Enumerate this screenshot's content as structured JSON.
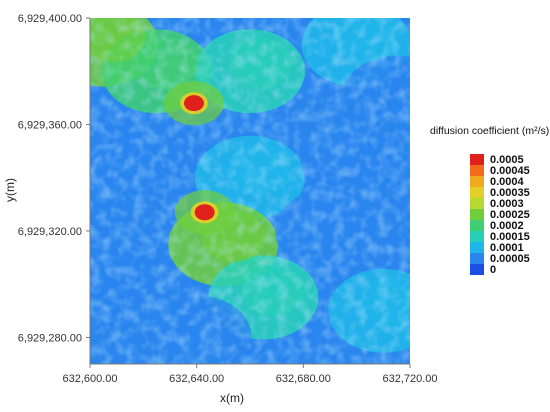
{
  "chart_data": {
    "type": "heatmap",
    "title": "",
    "xlabel": "x(m)",
    "ylabel": "y(m)",
    "xlim": [
      632600,
      632720
    ],
    "ylim": [
      6929270,
      6929400
    ],
    "x_ticks": [
      632600,
      632640,
      632680,
      632720
    ],
    "y_ticks": [
      6929280,
      6929320,
      6929360,
      6929400
    ],
    "x_tick_labels": [
      "632,600.00",
      "632,640.00",
      "632,680.00",
      "632,720.00"
    ],
    "y_tick_labels": [
      "6,929,280.00",
      "6,929,320.00",
      "6,929,360.00",
      "6,929,400.00"
    ],
    "colorbar": {
      "title": "diffusion coefficient (m²/s)",
      "levels": [
        "0.0005",
        "0.00045",
        "0.0004",
        "0.00035",
        "0.0003",
        "0.00025",
        "0.0002",
        "0.00015",
        "0.0001",
        "0.00005",
        "0"
      ],
      "colors": [
        "#e0201b",
        "#f26b1c",
        "#f2a922",
        "#e2cf28",
        "#b5d930",
        "#6fce3a",
        "#3fcf72",
        "#28d0b8",
        "#1fb7e9",
        "#2a86ee",
        "#1b4fe3"
      ]
    },
    "hotspots": [
      {
        "x": 632639,
        "y": 6929368,
        "value": 0.0005
      },
      {
        "x": 632643,
        "y": 6929327,
        "value": 0.0005
      }
    ],
    "field_description_points": [
      {
        "x": 632605,
        "y": 6929390,
        "value": 0.00025
      },
      {
        "x": 632625,
        "y": 6929380,
        "value": 0.0002
      },
      {
        "x": 632660,
        "y": 6929380,
        "value": 0.00015
      },
      {
        "x": 632700,
        "y": 6929390,
        "value": 0.0001
      },
      {
        "x": 632715,
        "y": 6929370,
        "value": 5e-05
      },
      {
        "x": 632612,
        "y": 6929345,
        "value": 5e-05
      },
      {
        "x": 632660,
        "y": 6929340,
        "value": 0.0001
      },
      {
        "x": 632700,
        "y": 6929345,
        "value": 5e-05
      },
      {
        "x": 632650,
        "y": 6929315,
        "value": 0.00025
      },
      {
        "x": 632690,
        "y": 6929320,
        "value": 5e-05
      },
      {
        "x": 632610,
        "y": 6929300,
        "value": 5e-05
      },
      {
        "x": 632665,
        "y": 6929295,
        "value": 0.00015
      },
      {
        "x": 632710,
        "y": 6929290,
        "value": 0.0001
      },
      {
        "x": 632640,
        "y": 6929280,
        "value": 5e-05
      }
    ]
  }
}
